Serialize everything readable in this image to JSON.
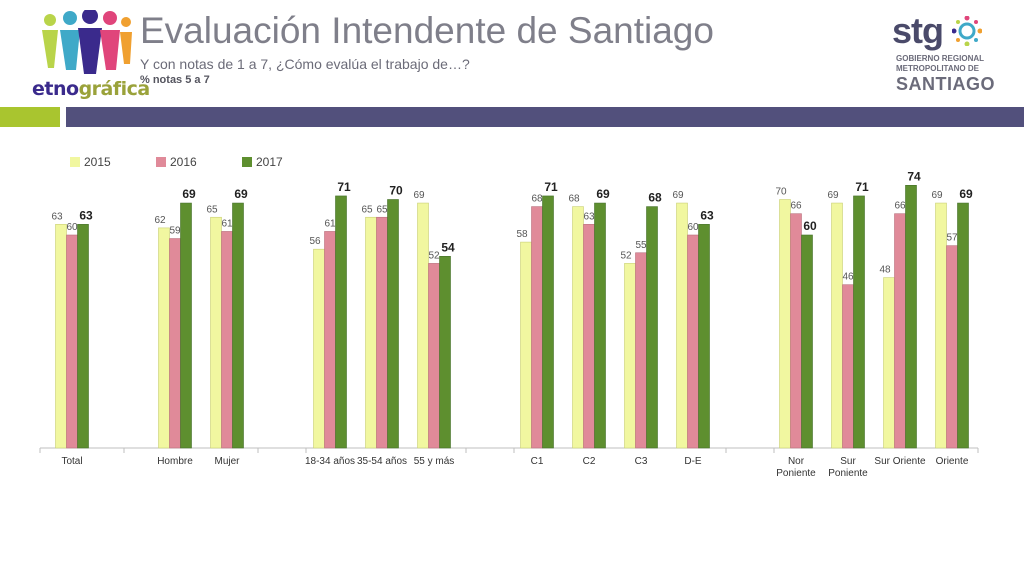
{
  "header": {
    "title": "Evaluación Intendente de Santiago",
    "subtitle": "Y con notas de 1 a 7, ¿Cómo evalúa el trabajo de…?",
    "note": "% notas 5 a 7"
  },
  "logo_left": {
    "text_a": "etno",
    "text_b": "gráfica"
  },
  "logo_right": {
    "word": "stg",
    "line1": "GOBIERNO REGIONAL",
    "line2": "METROPOLITANO DE",
    "line3": "SANTIAGO"
  },
  "colors": {
    "2015": "#f1f7a0",
    "2016": "#e08a99",
    "2017": "#5e8f2f",
    "band_green": "#a9c52f",
    "band_purple": "#52507c"
  },
  "chart_data": {
    "type": "bar",
    "categories": [
      "Total",
      "Hombre",
      "Mujer",
      "18-34 años",
      "35-54 años",
      "55 y más",
      "C1",
      "C2",
      "C3",
      "D-E",
      "Nor Poniente",
      "Sur Poniente",
      "Sur Oriente",
      "Oriente"
    ],
    "series": [
      {
        "name": "2015",
        "values": [
          63,
          62,
          65,
          56,
          65,
          69,
          58,
          68,
          52,
          69,
          70,
          69,
          48,
          69
        ]
      },
      {
        "name": "2016",
        "values": [
          60,
          59,
          61,
          61,
          65,
          52,
          68,
          63,
          55,
          60,
          66,
          46,
          66,
          57
        ]
      },
      {
        "name": "2017",
        "values": [
          63,
          69,
          69,
          71,
          70,
          54,
          71,
          69,
          68,
          63,
          60,
          71,
          74,
          69
        ]
      }
    ],
    "ylim": [
      0,
      100
    ],
    "legend_position": "top-left",
    "grid": false
  }
}
